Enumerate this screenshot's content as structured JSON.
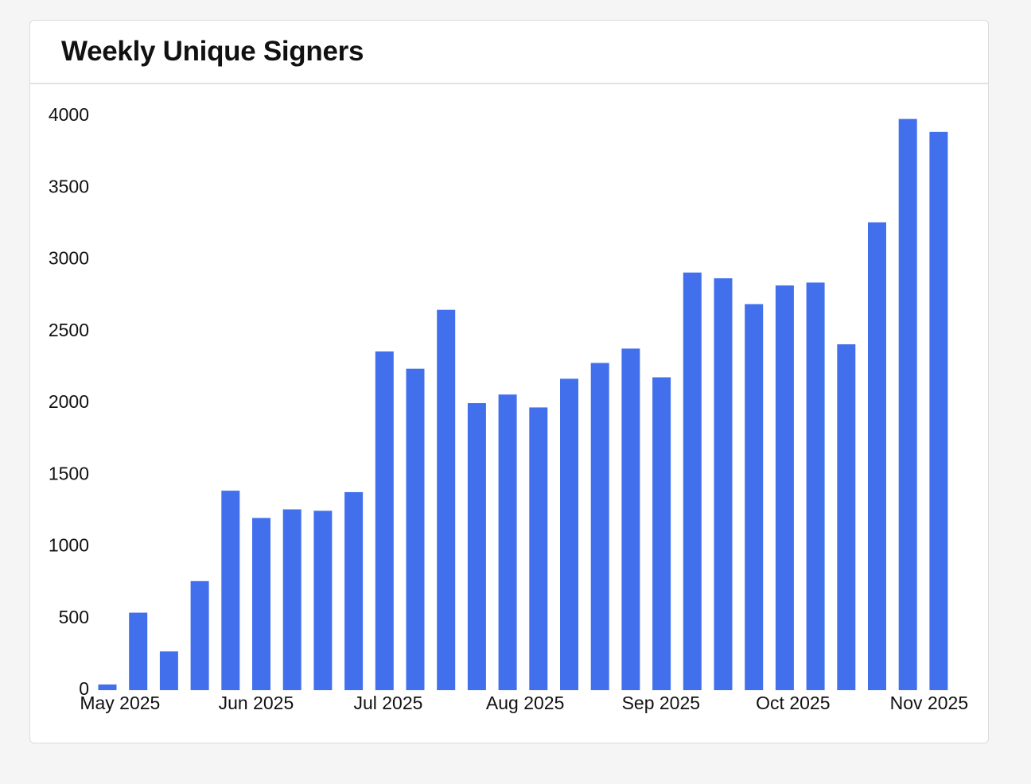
{
  "chart_data": {
    "type": "bar",
    "title": "Weekly Unique Signers",
    "categories": [
      null,
      null,
      null,
      null,
      null,
      null,
      null,
      null,
      null,
      null,
      null,
      null,
      null,
      null,
      null,
      null,
      null,
      null,
      null,
      null,
      null,
      null,
      null,
      null,
      null,
      null,
      null,
      null
    ],
    "values": [
      40,
      540,
      270,
      760,
      1390,
      1200,
      1260,
      1250,
      1380,
      2360,
      2240,
      2650,
      2000,
      2060,
      1970,
      2170,
      2280,
      2380,
      2180,
      2910,
      2870,
      2690,
      2820,
      2840,
      2410,
      3260,
      3980,
      3890
    ],
    "color": "#4270ed",
    "xticks": [
      {
        "value": 0.41,
        "label": "May 2025"
      },
      {
        "value": 4.83,
        "label": "Jun 2025"
      },
      {
        "value": 9.12,
        "label": "Jul 2025"
      },
      {
        "value": 13.57,
        "label": "Aug 2025"
      },
      {
        "value": 17.98,
        "label": "Sep 2025"
      },
      {
        "value": 22.27,
        "label": "Oct 2025"
      },
      {
        "value": 26.69,
        "label": "Nov 2025"
      }
    ],
    "ylim": [
      0,
      4000
    ],
    "yticks": [
      0,
      500,
      1000,
      1500,
      2000,
      2500,
      3000,
      3500,
      4000
    ],
    "grid": false
  }
}
